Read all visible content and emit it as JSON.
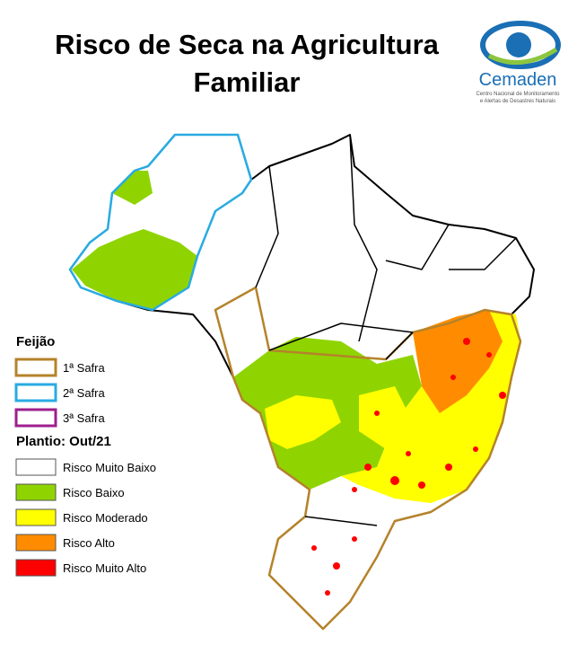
{
  "header": {
    "title_lines": [
      "Risco de Seca na Agricultura",
      "Familiar"
    ]
  },
  "logo": {
    "name": "Cemaden",
    "subtitle_lines": [
      "Centro Nacional de Monitoramento",
      "e Alertas de Desastres Naturais"
    ]
  },
  "legend": {
    "crop": "Feijão",
    "seasons": [
      {
        "label": "1ª Safra",
        "color": "#b5832b"
      },
      {
        "label": "2ª Safra",
        "color": "#29abe2"
      },
      {
        "label": "3ª Safra",
        "color": "#9e1f8e"
      }
    ],
    "planting": "Plantio: Out/21",
    "classes": [
      {
        "label": "Risco Muito Baixo",
        "color": "#ffffff"
      },
      {
        "label": "Risco Baixo",
        "color": "#8fd400"
      },
      {
        "label": "Risco Moderado",
        "color": "#ffff00"
      },
      {
        "label": "Risco Alto",
        "color": "#ff8c00"
      },
      {
        "label": "Risco Muito Alto",
        "color": "#ff0000"
      }
    ]
  }
}
